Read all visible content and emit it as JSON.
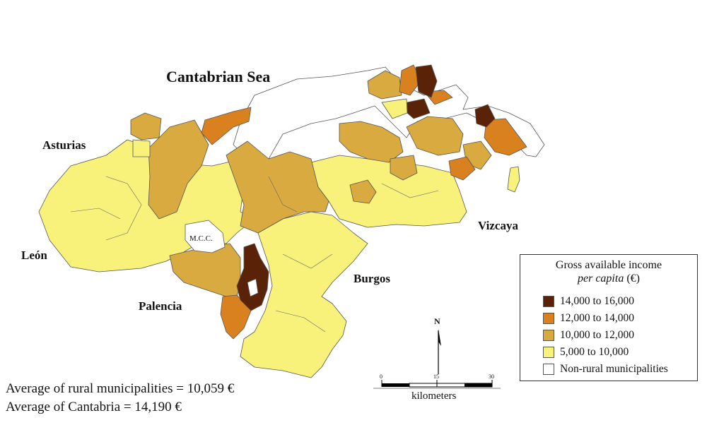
{
  "labels": {
    "sea": "Cantabrian Sea",
    "asturias": "Asturias",
    "leon": "León",
    "palencia": "Palencia",
    "burgos": "Burgos",
    "vizcaya": "Vizcaya",
    "mcc": "M.C.C."
  },
  "legend": {
    "title_line1": "Gross available income",
    "title_line2": "per capita",
    "title_unit": " (€)",
    "classes": [
      {
        "label": "14,000 to 16,000",
        "color": "#5a2307"
      },
      {
        "label": "12,000 to 14,000",
        "color": "#d9811f"
      },
      {
        "label": "10,000 to 12,000",
        "color": "#d9aa3f"
      },
      {
        "label": "5,000 to 10,000",
        "color": "#f8f27a"
      },
      {
        "label": "Non-rural municipalities",
        "color": "#ffffff"
      }
    ]
  },
  "averages": {
    "rural": "Average of rural municipalities = 10,059 €",
    "cantabria": "Average of Cantabria = 14,190 €"
  },
  "scale_bar": {
    "ticks": [
      "0",
      "15",
      "30"
    ],
    "unit": "kilometers"
  },
  "north": "N"
}
